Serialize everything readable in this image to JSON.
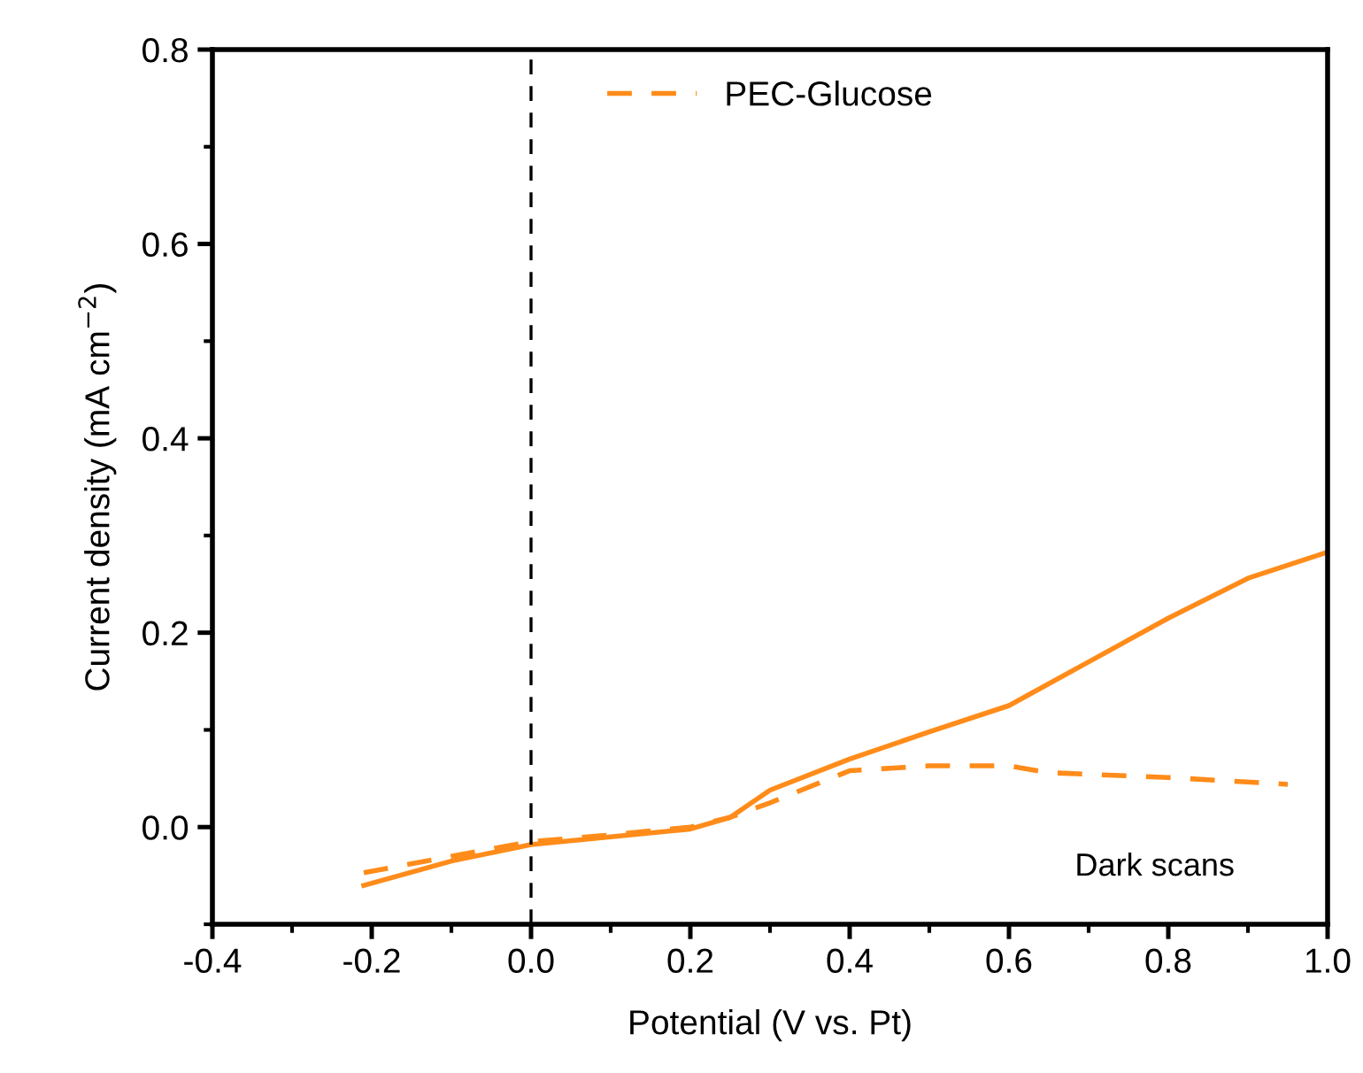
{
  "chart_data": {
    "type": "line",
    "xlabel": "Potential (V vs. Pt)",
    "ylabel": "Current density (mA cm$^{−2}$)",
    "xlim": [
      -0.4,
      1.0
    ],
    "xticks": [
      -0.4,
      -0.2,
      {
        "value": 0,
        "label": "0.0"
      },
      0.2,
      0.4,
      0.6,
      0.8,
      {
        "value": 1,
        "label": "1.0"
      }
    ],
    "ylim": [
      -0.1,
      0.8
    ],
    "yticks": [
      {
        "value": 0,
        "label": "0.0"
      },
      0.2,
      0.4,
      0.6,
      0.8
    ],
    "legend": "top",
    "grid": false,
    "ref_lines": [
      {
        "axis": "x",
        "value": 0.0,
        "color": "#000000",
        "line_style": "dashed"
      }
    ],
    "annotations": [
      "Dark scans"
    ],
    "series": [
      {
        "color": "#ff8c1a",
        "line_style": "solid",
        "x": [
          -0.21,
          -0.1,
          0.0,
          0.1,
          0.2,
          0.25,
          0.3,
          0.4,
          0.5,
          0.6,
          0.7,
          0.8,
          0.9,
          1.0
        ],
        "values": [
          -0.06,
          -0.035,
          -0.018,
          -0.01,
          -0.002,
          0.01,
          0.038,
          0.07,
          0.098,
          0.125,
          0.17,
          0.215,
          0.256,
          0.283
        ]
      },
      {
        "name": "PEC-Glucose",
        "color": "#ff8c1a",
        "line_style": "dashed",
        "x": [
          -0.21,
          -0.1,
          0.0,
          0.1,
          0.2,
          0.25,
          0.3,
          0.4,
          0.5,
          0.6,
          0.65,
          0.8,
          0.95
        ],
        "values": [
          -0.047,
          -0.03,
          -0.015,
          -0.008,
          0.0,
          0.01,
          0.025,
          0.058,
          0.063,
          0.063,
          0.056,
          0.051,
          0.044
        ]
      }
    ]
  }
}
